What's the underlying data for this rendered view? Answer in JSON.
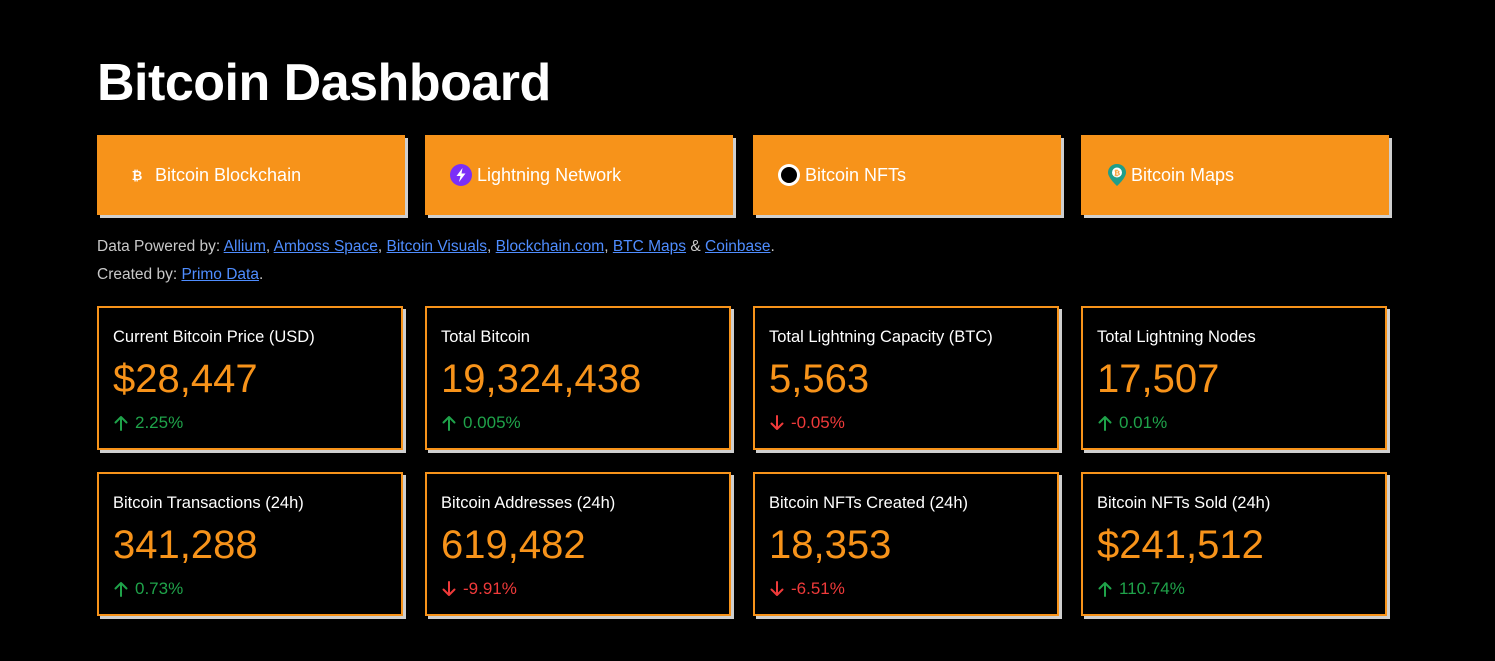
{
  "title": "Bitcoin Dashboard",
  "nav": [
    {
      "label": "Bitcoin Blockchain",
      "icon": "bitcoin-icon"
    },
    {
      "label": "Lightning Network",
      "icon": "lightning-icon"
    },
    {
      "label": "Bitcoin NFTs",
      "icon": "ordinals-icon"
    },
    {
      "label": "Bitcoin Maps",
      "icon": "map-pin-icon"
    }
  ],
  "credits": {
    "powered_prefix": "Data Powered by: ",
    "sources": [
      "Allium",
      "Amboss Space",
      "Bitcoin Visuals",
      "Blockchain.com",
      "BTC Maps",
      "Coinbase"
    ],
    "sep": ", ",
    "amp": " & ",
    "end": ".",
    "created_prefix": "Created by: ",
    "creator": "Primo Data"
  },
  "colors": {
    "accent": "#f7931a",
    "positive": "#1fa34a",
    "negative": "#ef3a3a",
    "link": "#4f8dff",
    "background": "#000000"
  },
  "cards": [
    {
      "label": "Current Bitcoin Price (USD)",
      "value": "$28,447",
      "change": "2.25%",
      "direction": "up"
    },
    {
      "label": "Total Bitcoin",
      "value": "19,324,438",
      "change": "0.005%",
      "direction": "up"
    },
    {
      "label": "Total Lightning Capacity (BTC)",
      "value": "5,563",
      "change": "-0.05%",
      "direction": "down"
    },
    {
      "label": "Total Lightning Nodes",
      "value": "17,507",
      "change": "0.01%",
      "direction": "up"
    },
    {
      "label": "Bitcoin Transactions (24h)",
      "value": "341,288",
      "change": "0.73%",
      "direction": "up"
    },
    {
      "label": "Bitcoin Addresses (24h)",
      "value": "619,482",
      "change": "-9.91%",
      "direction": "down"
    },
    {
      "label": "Bitcoin NFTs Created (24h)",
      "value": "18,353",
      "change": "-6.51%",
      "direction": "down"
    },
    {
      "label": "Bitcoin NFTs Sold (24h)",
      "value": "$241,512",
      "change": "110.74%",
      "direction": "up"
    }
  ]
}
